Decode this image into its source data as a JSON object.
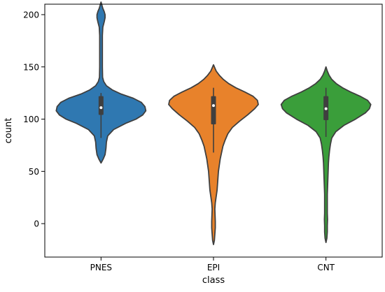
{
  "chart_data": {
    "type": "violin",
    "title": "",
    "xlabel": "class",
    "ylabel": "count",
    "ylim": [
      -32,
      210
    ],
    "yticks": [
      0,
      50,
      100,
      150,
      200
    ],
    "grid": false,
    "categories": [
      "PNES",
      "EPI",
      "CNT"
    ],
    "colors": [
      "#2f78b1",
      "#e8822b",
      "#3a9e3a"
    ],
    "series": [
      {
        "name": "PNES",
        "min": 58,
        "q1": 104,
        "median": 111,
        "q3": 122,
        "whisker_low": 82,
        "whisker_high": 125,
        "max": 212,
        "density": [
          [
            58,
            0.0
          ],
          [
            62,
            0.05
          ],
          [
            66,
            0.09
          ],
          [
            72,
            0.11
          ],
          [
            78,
            0.12
          ],
          [
            84,
            0.15
          ],
          [
            90,
            0.28
          ],
          [
            96,
            0.55
          ],
          [
            100,
            0.78
          ],
          [
            104,
            0.93
          ],
          [
            108,
            1.0
          ],
          [
            112,
            0.98
          ],
          [
            116,
            0.9
          ],
          [
            120,
            0.72
          ],
          [
            124,
            0.45
          ],
          [
            128,
            0.25
          ],
          [
            132,
            0.12
          ],
          [
            136,
            0.06
          ],
          [
            140,
            0.035
          ],
          [
            150,
            0.03
          ],
          [
            160,
            0.03
          ],
          [
            170,
            0.03
          ],
          [
            180,
            0.03
          ],
          [
            188,
            0.04
          ],
          [
            193,
            0.07
          ],
          [
            197,
            0.09
          ],
          [
            200,
            0.09
          ],
          [
            203,
            0.07
          ],
          [
            206,
            0.04
          ],
          [
            209,
            0.02
          ],
          [
            212,
            0.0
          ]
        ]
      },
      {
        "name": "EPI",
        "min": -20,
        "q1": 95,
        "median": 113,
        "q3": 122,
        "whisker_low": 68,
        "whisker_high": 130,
        "max": 152,
        "density": [
          [
            -20,
            0.0
          ],
          [
            -16,
            0.02
          ],
          [
            -10,
            0.03
          ],
          [
            -4,
            0.04
          ],
          [
            2,
            0.04
          ],
          [
            8,
            0.035
          ],
          [
            14,
            0.03
          ],
          [
            20,
            0.04
          ],
          [
            26,
            0.06
          ],
          [
            32,
            0.08
          ],
          [
            38,
            0.09
          ],
          [
            44,
            0.1
          ],
          [
            50,
            0.11
          ],
          [
            56,
            0.13
          ],
          [
            62,
            0.15
          ],
          [
            68,
            0.18
          ],
          [
            74,
            0.21
          ],
          [
            80,
            0.26
          ],
          [
            86,
            0.32
          ],
          [
            92,
            0.42
          ],
          [
            98,
            0.58
          ],
          [
            104,
            0.76
          ],
          [
            110,
            0.92
          ],
          [
            114,
            1.0
          ],
          [
            118,
            0.98
          ],
          [
            122,
            0.88
          ],
          [
            126,
            0.7
          ],
          [
            130,
            0.5
          ],
          [
            134,
            0.34
          ],
          [
            138,
            0.22
          ],
          [
            142,
            0.13
          ],
          [
            146,
            0.06
          ],
          [
            150,
            0.02
          ],
          [
            152,
            0.0
          ]
        ]
      },
      {
        "name": "CNT",
        "min": -18,
        "q1": 99,
        "median": 110,
        "q3": 122,
        "whisker_low": 83,
        "whisker_high": 130,
        "max": 150,
        "density": [
          [
            -18,
            0.0
          ],
          [
            -14,
            0.02
          ],
          [
            -8,
            0.03
          ],
          [
            -2,
            0.03
          ],
          [
            4,
            0.035
          ],
          [
            10,
            0.03
          ],
          [
            16,
            0.03
          ],
          [
            22,
            0.03
          ],
          [
            28,
            0.03
          ],
          [
            34,
            0.035
          ],
          [
            40,
            0.04
          ],
          [
            46,
            0.045
          ],
          [
            52,
            0.05
          ],
          [
            58,
            0.055
          ],
          [
            64,
            0.065
          ],
          [
            70,
            0.08
          ],
          [
            76,
            0.1
          ],
          [
            82,
            0.13
          ],
          [
            88,
            0.22
          ],
          [
            94,
            0.4
          ],
          [
            100,
            0.66
          ],
          [
            106,
            0.88
          ],
          [
            110,
            0.97
          ],
          [
            114,
            1.0
          ],
          [
            118,
            0.93
          ],
          [
            122,
            0.76
          ],
          [
            126,
            0.55
          ],
          [
            130,
            0.37
          ],
          [
            134,
            0.23
          ],
          [
            138,
            0.13
          ],
          [
            142,
            0.07
          ],
          [
            146,
            0.03
          ],
          [
            150,
            0.0
          ]
        ]
      }
    ]
  }
}
